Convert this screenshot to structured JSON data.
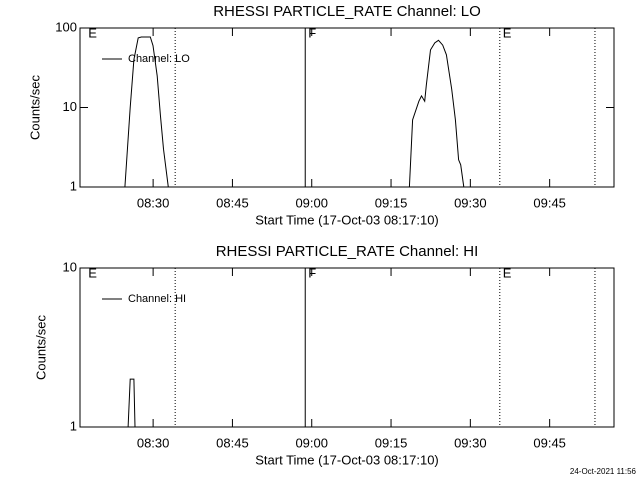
{
  "chart_data": [
    {
      "type": "line",
      "title": "RHESSI PARTICLE_RATE Channel: LO",
      "x_label": "Start Time (17-Oct-03 08:17:10)",
      "y_label": "Counts/sec",
      "log_y": true,
      "xlim": [
        -1,
        100
      ],
      "ylim": [
        1,
        100
      ],
      "yticks": [
        1,
        10,
        100
      ],
      "xticks": [
        {
          "value": 12.83,
          "label": "08:30"
        },
        {
          "value": 27.83,
          "label": "08:45"
        },
        {
          "value": 42.83,
          "label": "09:00"
        },
        {
          "value": 57.83,
          "label": "09:15"
        },
        {
          "value": 72.83,
          "label": "09:30"
        },
        {
          "value": 87.83,
          "label": "09:45"
        }
      ],
      "series": [
        {
          "name": "Channel: LO",
          "color": "#000000",
          "x": [
            7.5,
            8.5,
            9.2,
            10.0,
            10.6,
            12.3,
            12.8,
            13.6,
            14.2,
            14.8,
            15.7,
            null,
            61.3,
            61.9,
            63.1,
            63.6,
            64.2,
            64.5,
            65.3,
            66.1,
            66.8,
            67.6,
            68.3,
            69.3,
            70.0,
            70.6,
            71.0,
            71.6
          ],
          "values": [
            1,
            10,
            40,
            75,
            77,
            77,
            60,
            25,
            8,
            3,
            1,
            null,
            1,
            7,
            12,
            14,
            12,
            19,
            53,
            65,
            70,
            61,
            46,
            17,
            7,
            2.2,
            1.9,
            1
          ]
        }
      ],
      "annotations": [
        {
          "x": 0,
          "text": "E"
        },
        {
          "x": 41.6,
          "text": "F"
        },
        {
          "x": 78.4,
          "text": "E"
        }
      ],
      "vlines": [
        {
          "x": 17.0,
          "dotted": true
        },
        {
          "x": 41.6,
          "dotted": false
        },
        {
          "x": 78.4,
          "dotted": true
        },
        {
          "x": 96.4,
          "dotted": true
        }
      ]
    },
    {
      "type": "line",
      "title": "RHESSI PARTICLE_RATE Channel: HI",
      "x_label": "Start Time (17-Oct-03 08:17:10)",
      "y_label": "Counts/sec",
      "log_y": true,
      "xlim": [
        -1,
        100
      ],
      "ylim": [
        1,
        10
      ],
      "yticks": [
        1,
        10
      ],
      "xticks": [
        {
          "value": 12.83,
          "label": "08:30"
        },
        {
          "value": 27.83,
          "label": "08:45"
        },
        {
          "value": 42.83,
          "label": "09:00"
        },
        {
          "value": 57.83,
          "label": "09:15"
        },
        {
          "value": 72.83,
          "label": "09:30"
        },
        {
          "value": 87.83,
          "label": "09:45"
        }
      ],
      "series": [
        {
          "name": "Channel: HI",
          "color": "#000000",
          "x": [
            8.1,
            8.5,
            9.2,
            9.4
          ],
          "values": [
            1,
            2,
            2,
            1
          ]
        }
      ],
      "annotations": [
        {
          "x": 0,
          "text": "E"
        },
        {
          "x": 41.6,
          "text": "F"
        },
        {
          "x": 78.4,
          "text": "E"
        }
      ],
      "vlines": [
        {
          "x": 17.0,
          "dotted": true
        },
        {
          "x": 41.6,
          "dotted": false
        },
        {
          "x": 78.4,
          "dotted": true
        },
        {
          "x": 96.4,
          "dotted": true
        }
      ]
    }
  ],
  "footer": "24-Oct-2021 11:56"
}
